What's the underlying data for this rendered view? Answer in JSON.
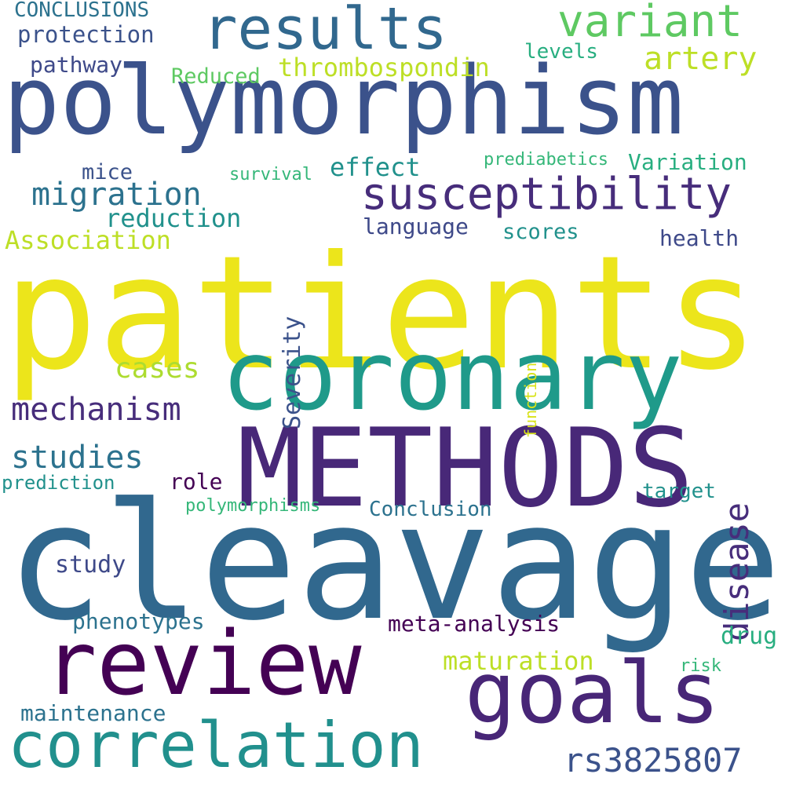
{
  "palette": {
    "dark_purple": "#440154",
    "purple": "#472d7b",
    "indigo": "#3b528b",
    "blue": "#2c728e",
    "teal": "#21918c",
    "green_teal": "#28ae80",
    "green": "#5ec962",
    "lime": "#addc30",
    "yellow": "#fde725",
    "bright_yellow": "#ece51b"
  },
  "words": [
    {
      "text": "patients",
      "color": "#ece51b"
    },
    {
      "text": "cleavage",
      "color": "#31688e"
    },
    {
      "text": "polymorphism",
      "color": "#3b528b"
    },
    {
      "text": "METHODS",
      "color": "#482878"
    },
    {
      "text": "coronary",
      "color": "#1f9a8a"
    },
    {
      "text": "review",
      "color": "#440154"
    },
    {
      "text": "goals",
      "color": "#482677"
    },
    {
      "text": "correlation",
      "color": "#21908d"
    },
    {
      "text": "results",
      "color": "#31688e"
    },
    {
      "text": "susceptibility",
      "color": "#472d7b"
    },
    {
      "text": "variant",
      "color": "#5ec962"
    },
    {
      "text": "artery",
      "color": "#bddf26"
    },
    {
      "text": "migration",
      "color": "#2c728e"
    },
    {
      "text": "mechanism",
      "color": "#472d7b"
    },
    {
      "text": "studies",
      "color": "#2c728e"
    },
    {
      "text": "disease",
      "color": "#472d7b"
    },
    {
      "text": "rs3825807",
      "color": "#3b528b"
    },
    {
      "text": "cases",
      "color": "#addc30"
    },
    {
      "text": "thrombospondin",
      "color": "#bddf26"
    },
    {
      "text": "effect",
      "color": "#21918c"
    },
    {
      "text": "reduction",
      "color": "#21918c"
    },
    {
      "text": "Association",
      "color": "#bddf26"
    },
    {
      "text": "language",
      "color": "#3e4989"
    },
    {
      "text": "Severity",
      "color": "#3b528b"
    },
    {
      "text": "scores",
      "color": "#21918c"
    },
    {
      "text": "health",
      "color": "#3e4989"
    },
    {
      "text": "Variation",
      "color": "#28ae80"
    },
    {
      "text": "protection",
      "color": "#3b528b"
    },
    {
      "text": "pathway",
      "color": "#3e4989"
    },
    {
      "text": "Reduced",
      "color": "#5ec962"
    },
    {
      "text": "levels",
      "color": "#28ae80"
    },
    {
      "text": "CONCLUSIONS",
      "color": "#2c728e"
    },
    {
      "text": "mice",
      "color": "#3b528b"
    },
    {
      "text": "survival",
      "color": "#35b779"
    },
    {
      "text": "prediabetics",
      "color": "#35b779"
    },
    {
      "text": "function",
      "color": "#d8e219"
    },
    {
      "text": "role",
      "color": "#440154"
    },
    {
      "text": "target",
      "color": "#21918c"
    },
    {
      "text": "Conclusion",
      "color": "#2c728e"
    },
    {
      "text": "prediction",
      "color": "#21918c"
    },
    {
      "text": "polymorphisms",
      "color": "#35b779"
    },
    {
      "text": "study",
      "color": "#3e4989"
    },
    {
      "text": "phenotypes",
      "color": "#2c728e"
    },
    {
      "text": "meta-analysis",
      "color": "#440154"
    },
    {
      "text": "drug",
      "color": "#28ae80"
    },
    {
      "text": "maturation",
      "color": "#bddf26"
    },
    {
      "text": "risk",
      "color": "#35b779"
    },
    {
      "text": "maintenance",
      "color": "#2c728e"
    }
  ]
}
